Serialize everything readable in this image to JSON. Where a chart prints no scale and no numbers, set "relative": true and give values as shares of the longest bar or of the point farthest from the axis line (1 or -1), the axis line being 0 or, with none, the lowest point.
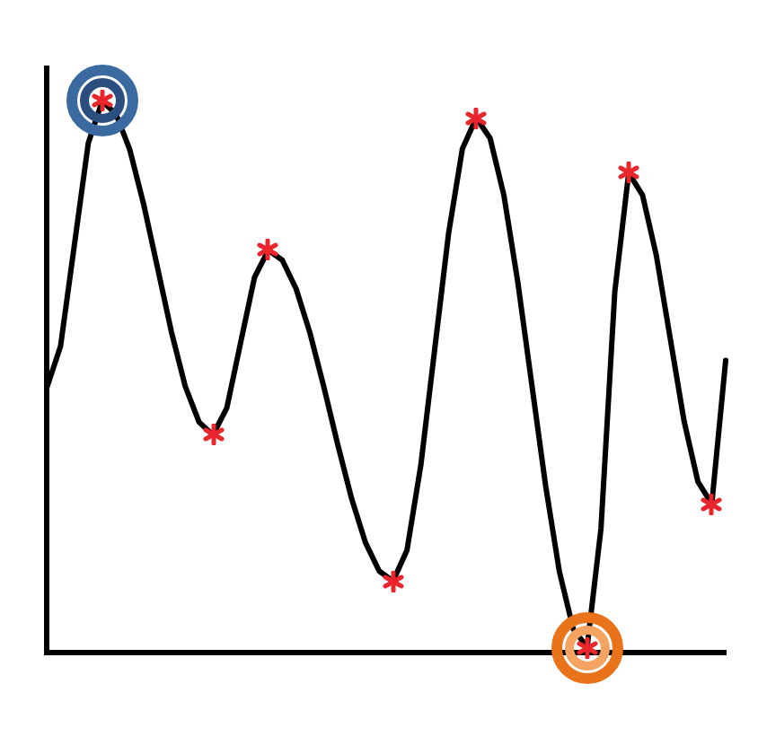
{
  "chart_data": {
    "type": "line",
    "relative": true,
    "legend": false,
    "grid": false,
    "categories": [
      null,
      null,
      null,
      null,
      null,
      null,
      null,
      null,
      null,
      null,
      null,
      null,
      null,
      null,
      null,
      null,
      null,
      null,
      null,
      null,
      null,
      null,
      null,
      null,
      null,
      null,
      null,
      null,
      null,
      null,
      null,
      null,
      null,
      null,
      null,
      null,
      null,
      null,
      null,
      null,
      null,
      null,
      null,
      null,
      null,
      null,
      null,
      null,
      null,
      null
    ],
    "series": [
      {
        "color": "#000000",
        "line_style": "solid",
        "values": [
          0.48,
          0.556,
          0.74,
          0.924,
          1.0,
          0.977,
          0.912,
          0.813,
          0.698,
          0.582,
          0.483,
          0.418,
          0.395,
          0.444,
          0.563,
          0.681,
          0.73,
          0.712,
          0.66,
          0.58,
          0.482,
          0.378,
          0.28,
          0.2,
          0.148,
          0.13,
          0.186,
          0.34,
          0.55,
          0.76,
          0.914,
          0.97,
          0.933,
          0.829,
          0.672,
          0.488,
          0.304,
          0.147,
          0.043,
          0.01,
          0.225,
          0.655,
          0.87,
          0.83,
          0.72,
          0.57,
          0.42,
          0.31,
          0.27,
          0.53
        ]
      }
    ]
  }
}
